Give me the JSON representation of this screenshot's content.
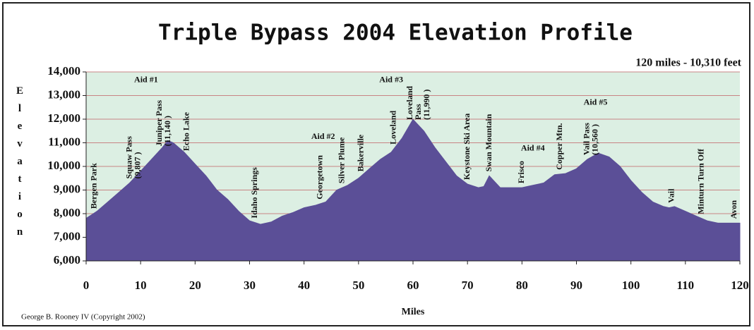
{
  "chart_data": {
    "type": "area",
    "title": "Triple Bypass 2004 Elevation Profile",
    "subtitle": "120 miles - 10,310 feet",
    "xlabel": "Miles",
    "ylabel": "Elevation",
    "credit": "George B. Rooney IV (Copyright 2002)",
    "color": "#5b4f97",
    "background": "#dcefe3",
    "grid_color": "#c88484",
    "grid": true,
    "xlim": [
      0,
      120
    ],
    "xticks": [
      0,
      10,
      20,
      30,
      40,
      50,
      60,
      70,
      80,
      90,
      100,
      110,
      120
    ],
    "ylim": [
      6000,
      14000
    ],
    "yticks": [
      {
        "value": 6000,
        "label": "6,000"
      },
      {
        "value": 7000,
        "label": "7,000"
      },
      {
        "value": 8000,
        "label": "8,000"
      },
      {
        "value": 9000,
        "label": "9,000"
      },
      {
        "value": 10000,
        "label": "10,000"
      },
      {
        "value": 11000,
        "label": "11,000"
      },
      {
        "value": 12000,
        "label": "12,000"
      },
      {
        "value": 13000,
        "label": "13,000"
      },
      {
        "value": 14000,
        "label": "14,000"
      }
    ],
    "x": [
      0,
      2,
      4,
      6,
      8,
      10,
      12,
      14,
      15,
      16,
      18,
      20,
      22,
      24,
      26,
      28,
      30,
      32,
      34,
      36,
      38,
      40,
      42,
      44,
      46,
      48,
      50,
      52,
      54,
      56,
      58,
      60,
      62,
      64,
      66,
      68,
      70,
      72,
      73,
      74,
      76,
      78,
      80,
      82,
      84,
      86,
      88,
      90,
      92,
      94,
      96,
      98,
      100,
      102,
      104,
      106,
      107,
      108,
      110,
      112,
      114,
      116,
      118,
      120
    ],
    "values": [
      7800,
      8100,
      8500,
      8900,
      9300,
      9800,
      10300,
      10800,
      11100,
      11000,
      10600,
      10100,
      9600,
      9000,
      8600,
      8100,
      7700,
      7550,
      7650,
      7900,
      8050,
      8250,
      8350,
      8500,
      9000,
      9200,
      9500,
      9900,
      10300,
      10600,
      11200,
      11990,
      11500,
      10800,
      10200,
      9600,
      9250,
      9100,
      9150,
      9600,
      9100,
      9100,
      9100,
      9200,
      9300,
      9650,
      9700,
      9900,
      10300,
      10560,
      10400,
      10000,
      9400,
      8900,
      8500,
      8300,
      8250,
      8300,
      8100,
      7900,
      7700,
      7600,
      7600,
      7600
    ],
    "landmarks": [
      {
        "x": 1.5,
        "lines": [
          "Bergen Park"
        ]
      },
      {
        "x": 8,
        "lines": [
          "Squaw Pass",
          "(9,807 )"
        ]
      },
      {
        "x": 13.5,
        "lines": [
          "Juniper Pass",
          "(11,140 )"
        ]
      },
      {
        "x": 18.5,
        "lines": [
          "Echo Lake"
        ]
      },
      {
        "x": 31,
        "lines": [
          "Idaho Springs"
        ]
      },
      {
        "x": 43,
        "lines": [
          "Georgetown"
        ]
      },
      {
        "x": 47,
        "lines": [
          "Silver Plume"
        ]
      },
      {
        "x": 50.5,
        "lines": [
          "Bakerville"
        ]
      },
      {
        "x": 56.5,
        "lines": [
          "Loveland"
        ]
      },
      {
        "x": 59.5,
        "lines": [
          "Loveland",
          "Pass",
          "(11,990 )"
        ]
      },
      {
        "x": 70,
        "lines": [
          "Keystone Ski Area"
        ]
      },
      {
        "x": 74,
        "lines": [
          "Swan Mountain"
        ]
      },
      {
        "x": 80,
        "lines": [
          "Frisco"
        ]
      },
      {
        "x": 87,
        "lines": [
          "Copper Mtn."
        ]
      },
      {
        "x": 92,
        "lines": [
          "Vail Pass",
          "(10,560 )"
        ]
      },
      {
        "x": 107.5,
        "lines": [
          "Vail"
        ]
      },
      {
        "x": 113,
        "lines": [
          "Minturn Turn Off"
        ]
      },
      {
        "x": 119,
        "lines": [
          "Avon"
        ]
      }
    ],
    "aid_stations": [
      {
        "text": "Aid #1",
        "x": 11,
        "y": 13650
      },
      {
        "text": "Aid #2",
        "x": 43.5,
        "y": 11250
      },
      {
        "text": "Aid #3",
        "x": 56,
        "y": 13650
      },
      {
        "text": "Aid #4",
        "x": 82,
        "y": 10750
      },
      {
        "text": "Aid #5",
        "x": 93.5,
        "y": 12700
      }
    ]
  }
}
